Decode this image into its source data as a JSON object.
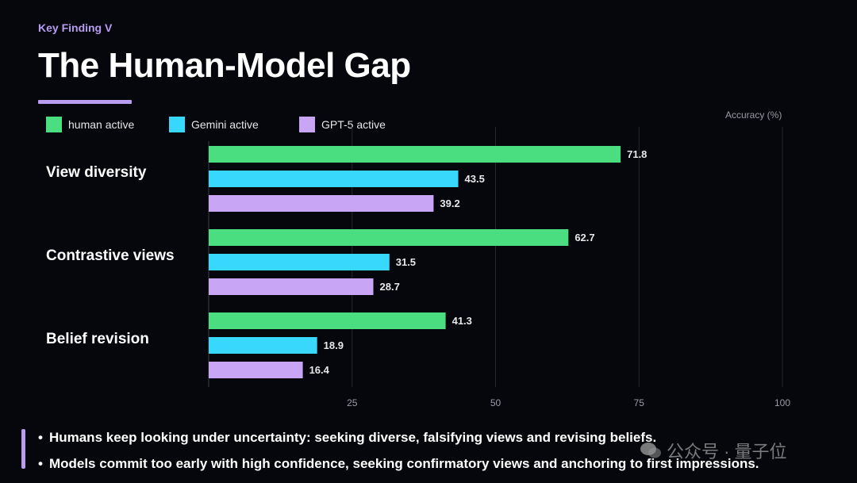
{
  "header": {
    "kicker": "Key Finding V",
    "title": "The Human-Model Gap"
  },
  "legend": [
    {
      "label": "human active",
      "color": "#4ade80"
    },
    {
      "label": "Gemini active",
      "color": "#38d8fc"
    },
    {
      "label": "GPT-5 active",
      "color": "#c8a5f5"
    }
  ],
  "chart_data": {
    "type": "bar",
    "orientation": "horizontal",
    "categories": [
      "View diversity",
      "Contrastive views",
      "Belief revision"
    ],
    "series": [
      {
        "name": "human active",
        "color": "#4ade80",
        "values": [
          71.8,
          62.7,
          41.3
        ]
      },
      {
        "name": "Gemini active",
        "color": "#38d8fc",
        "values": [
          43.5,
          31.5,
          18.9
        ]
      },
      {
        "name": "GPT-5 active",
        "color": "#c8a5f5",
        "values": [
          39.2,
          28.7,
          16.4
        ]
      }
    ],
    "xlabel": "Accuracy (%)",
    "xlim": [
      0,
      100
    ],
    "xticks": [
      25,
      50,
      75,
      100
    ],
    "grid": true,
    "legend_position": "top"
  },
  "bullets": [
    "Humans keep looking under uncertainty: seeking diverse, falsifying views and revising beliefs.",
    "Models commit too early with high confidence, seeking confirmatory views and anchoring to first impressions."
  ],
  "bullet_marker": "•",
  "watermark": "公众号 · 量子位"
}
